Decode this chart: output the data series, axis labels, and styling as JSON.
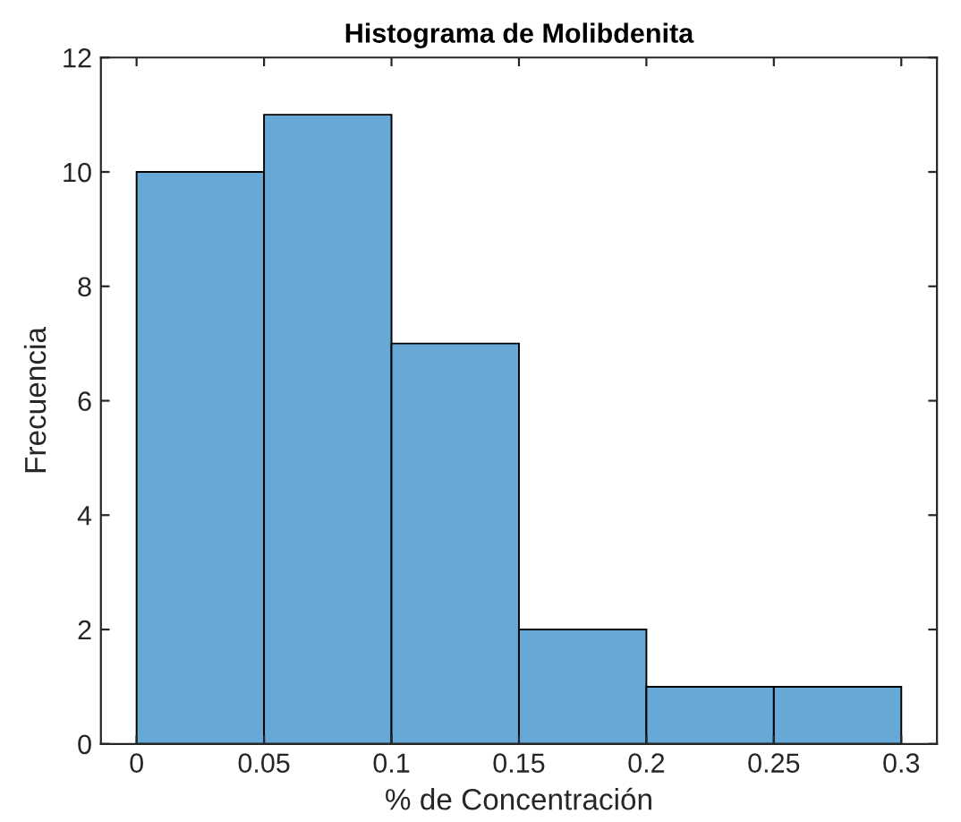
{
  "chart_data": {
    "type": "histogram",
    "title": "Histograma de Molibdenita",
    "xlabel": "% de Concentración",
    "ylabel": "Frecuencia",
    "bins": [
      0,
      0.05,
      0.1,
      0.15,
      0.2,
      0.25,
      0.3
    ],
    "values": [
      10,
      11,
      7,
      2,
      1,
      1
    ],
    "color": "#66a9d7",
    "xlim": [
      -0.014,
      0.314
    ],
    "xticks": [
      0,
      0.05,
      0.1,
      0.15,
      0.2,
      0.25,
      0.3
    ],
    "ylim": [
      0,
      12
    ],
    "yticks": [
      0,
      2,
      4,
      6,
      8,
      10,
      12
    ],
    "grid": false
  }
}
